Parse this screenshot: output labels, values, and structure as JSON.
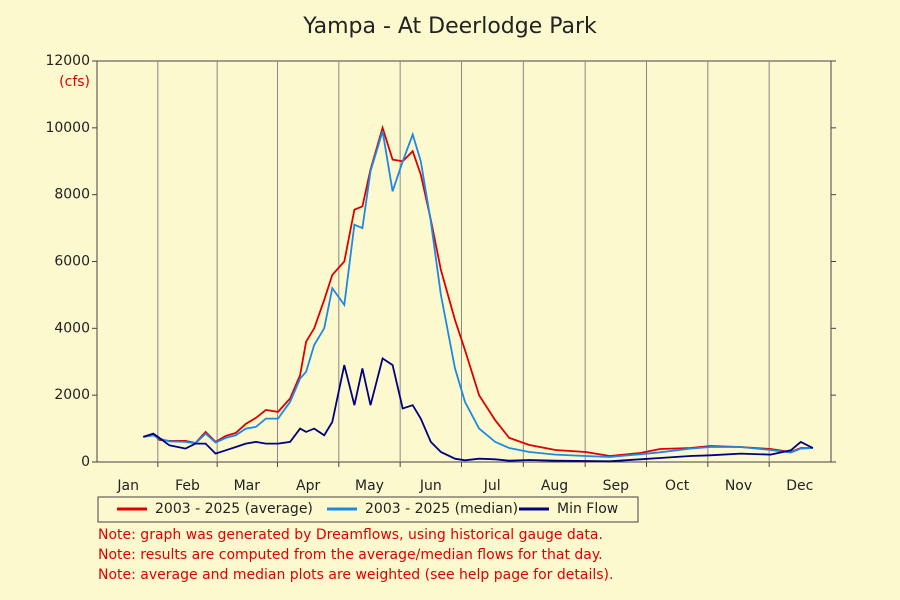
{
  "chart_data": {
    "type": "line",
    "title": "Yampa - At Deerlodge Park",
    "ylabel": "(cfs)",
    "x": [
      23,
      28,
      31,
      36,
      44,
      49,
      54,
      59,
      64,
      69,
      74,
      79,
      84,
      90,
      96,
      101,
      104,
      108,
      113,
      117,
      123,
      128,
      132,
      136,
      142,
      147,
      152,
      157,
      161,
      166,
      171,
      178,
      183,
      190,
      198,
      205,
      215,
      228,
      243,
      255,
      270,
      280,
      295,
      305,
      320,
      335,
      345,
      350,
      356
    ],
    "xlim": [
      0,
      365
    ],
    "xticks": [
      {
        "value": 15.5,
        "label": "Jan"
      },
      {
        "value": 45,
        "label": "Feb"
      },
      {
        "value": 74.5,
        "label": "Mar"
      },
      {
        "value": 105,
        "label": "Apr"
      },
      {
        "value": 135.5,
        "label": "May"
      },
      {
        "value": 166,
        "label": "Jun"
      },
      {
        "value": 196.5,
        "label": "Jul"
      },
      {
        "value": 227.5,
        "label": "Aug"
      },
      {
        "value": 258,
        "label": "Sep"
      },
      {
        "value": 288.5,
        "label": "Oct"
      },
      {
        "value": 319,
        "label": "Nov"
      },
      {
        "value": 349.5,
        "label": "Dec"
      }
    ],
    "ylim": [
      0,
      12000
    ],
    "yticks": [
      0,
      2000,
      4000,
      6000,
      8000,
      10000,
      12000
    ],
    "xgrid": true,
    "series": [
      {
        "name": "2003 - 2025 (average)",
        "color": "#dd0000",
        "values": [
          750,
          840,
          660,
          630,
          630,
          570,
          900,
          600,
          780,
          870,
          1140,
          1320,
          1560,
          1500,
          1900,
          2600,
          3600,
          4000,
          4850,
          5600,
          6000,
          7550,
          7650,
          8750,
          10000,
          9050,
          9000,
          9300,
          8600,
          7250,
          5750,
          4250,
          3350,
          2000,
          1250,
          720,
          510,
          360,
          300,
          180,
          270,
          390,
          420,
          480,
          450,
          390,
          300,
          420,
          420
        ]
      },
      {
        "name": "2003 - 2025 (median)",
        "color": "#1e88e5",
        "values": [
          750,
          800,
          700,
          620,
          600,
          560,
          850,
          580,
          720,
          800,
          1000,
          1050,
          1300,
          1300,
          1800,
          2500,
          2700,
          3500,
          4000,
          5200,
          4700,
          7100,
          7000,
          8700,
          9900,
          8100,
          9000,
          9800,
          9000,
          7200,
          5000,
          2800,
          1800,
          1000,
          600,
          420,
          300,
          220,
          180,
          150,
          230,
          290,
          400,
          450,
          450,
          360,
          280,
          400,
          420
        ]
      },
      {
        "name": "Min Flow",
        "color": "#000080",
        "values": [
          750,
          850,
          720,
          500,
          400,
          550,
          550,
          250,
          350,
          450,
          550,
          600,
          550,
          550,
          600,
          1000,
          900,
          1000,
          800,
          1200,
          2900,
          1700,
          2800,
          1700,
          3100,
          2900,
          1600,
          1700,
          1300,
          600,
          300,
          100,
          50,
          100,
          80,
          40,
          60,
          40,
          30,
          20,
          80,
          120,
          180,
          200,
          250,
          220,
          350,
          600,
          420
        ]
      }
    ],
    "notes": [
      "Note: graph was generated by Dreamflows, using historical gauge data.",
      "Note: results are computed from the average/median flows for that day.",
      "Note: average and median plots are weighted (see help page for details)."
    ]
  }
}
